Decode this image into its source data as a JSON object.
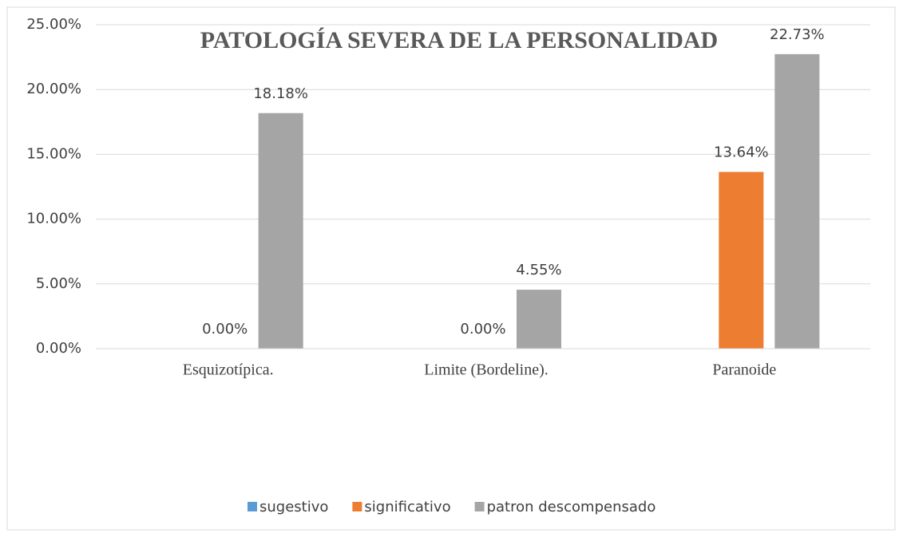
{
  "chart_data": {
    "type": "bar",
    "title": "PATOLOGÍA SEVERA DE LA PERSONALIDAD",
    "categories": [
      "Esquizotípica.",
      "Limite (Bordeline).",
      "Paranoide"
    ],
    "series": [
      {
        "name": "sugestivo",
        "color": "#5b9bd5",
        "values": [
          null,
          null,
          null
        ]
      },
      {
        "name": "significativo",
        "color": "#ed7d31",
        "values": [
          0,
          0,
          13.64
        ],
        "value_labels": [
          "0.00%",
          "0.00%",
          "13.64%"
        ]
      },
      {
        "name": "patron descompensado",
        "color": "#a5a5a5",
        "values": [
          18.18,
          4.55,
          22.73
        ],
        "value_labels": [
          "18.18%",
          "4.55%",
          "22.73%"
        ]
      }
    ],
    "ylim": [
      0,
      25
    ],
    "yticks": [
      {
        "value": 0,
        "label": "0.00%"
      },
      {
        "value": 5,
        "label": "5.00%"
      },
      {
        "value": 10,
        "label": "10.00%"
      },
      {
        "value": 15,
        "label": "15.00%"
      },
      {
        "value": 20,
        "label": "20.00%"
      },
      {
        "value": 25,
        "label": "25.00%"
      }
    ],
    "grid": true
  }
}
